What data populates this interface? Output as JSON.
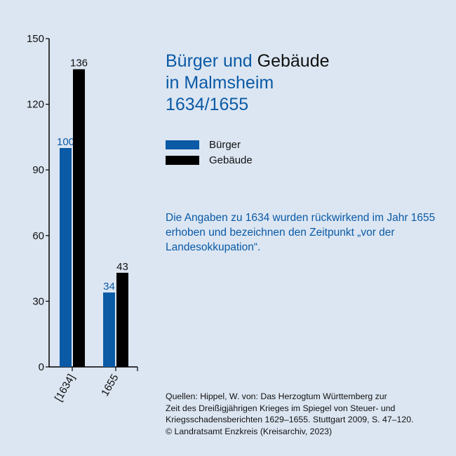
{
  "title": {
    "part1": "Bürger und ",
    "part2": "Gebäude",
    "line2": "in Malmsheim",
    "line3": "1634/1655"
  },
  "legend": [
    {
      "label": "Bürger",
      "color": "#0a5aa6"
    },
    {
      "label": "Gebäude",
      "color": "#000000"
    }
  ],
  "note": "Die Angaben zu 1634 wurden rückwirkend im Jahr 1655 erhoben und bezeichnen den Zeitpunkt „vor der Landesokkupation“.",
  "source": {
    "lines": [
      "Quellen: Hippel, W. von: Das Herzogtum Württemberg zur",
      "Zeit des Dreißigjährigen Krieges im Spiegel von Steuer- und",
      "Kriegsschadensberichten 1629–1655. Stuttgart 2009, S. 47–120.",
      "© Landratsamt Enzkreis (Kreisarchiv, 2023)"
    ]
  },
  "chart_data": {
    "type": "bar",
    "categories": [
      "[1634]",
      "1655"
    ],
    "series": [
      {
        "name": "Bürger",
        "values": [
          100,
          34
        ],
        "color": "#0a5aa6"
      },
      {
        "name": "Gebäude",
        "values": [
          136,
          43
        ],
        "color": "#000000"
      }
    ],
    "ylim": [
      0,
      150
    ],
    "yticks": [
      0,
      30,
      60,
      90,
      120,
      150
    ],
    "grid": false,
    "legend_position": "right"
  }
}
